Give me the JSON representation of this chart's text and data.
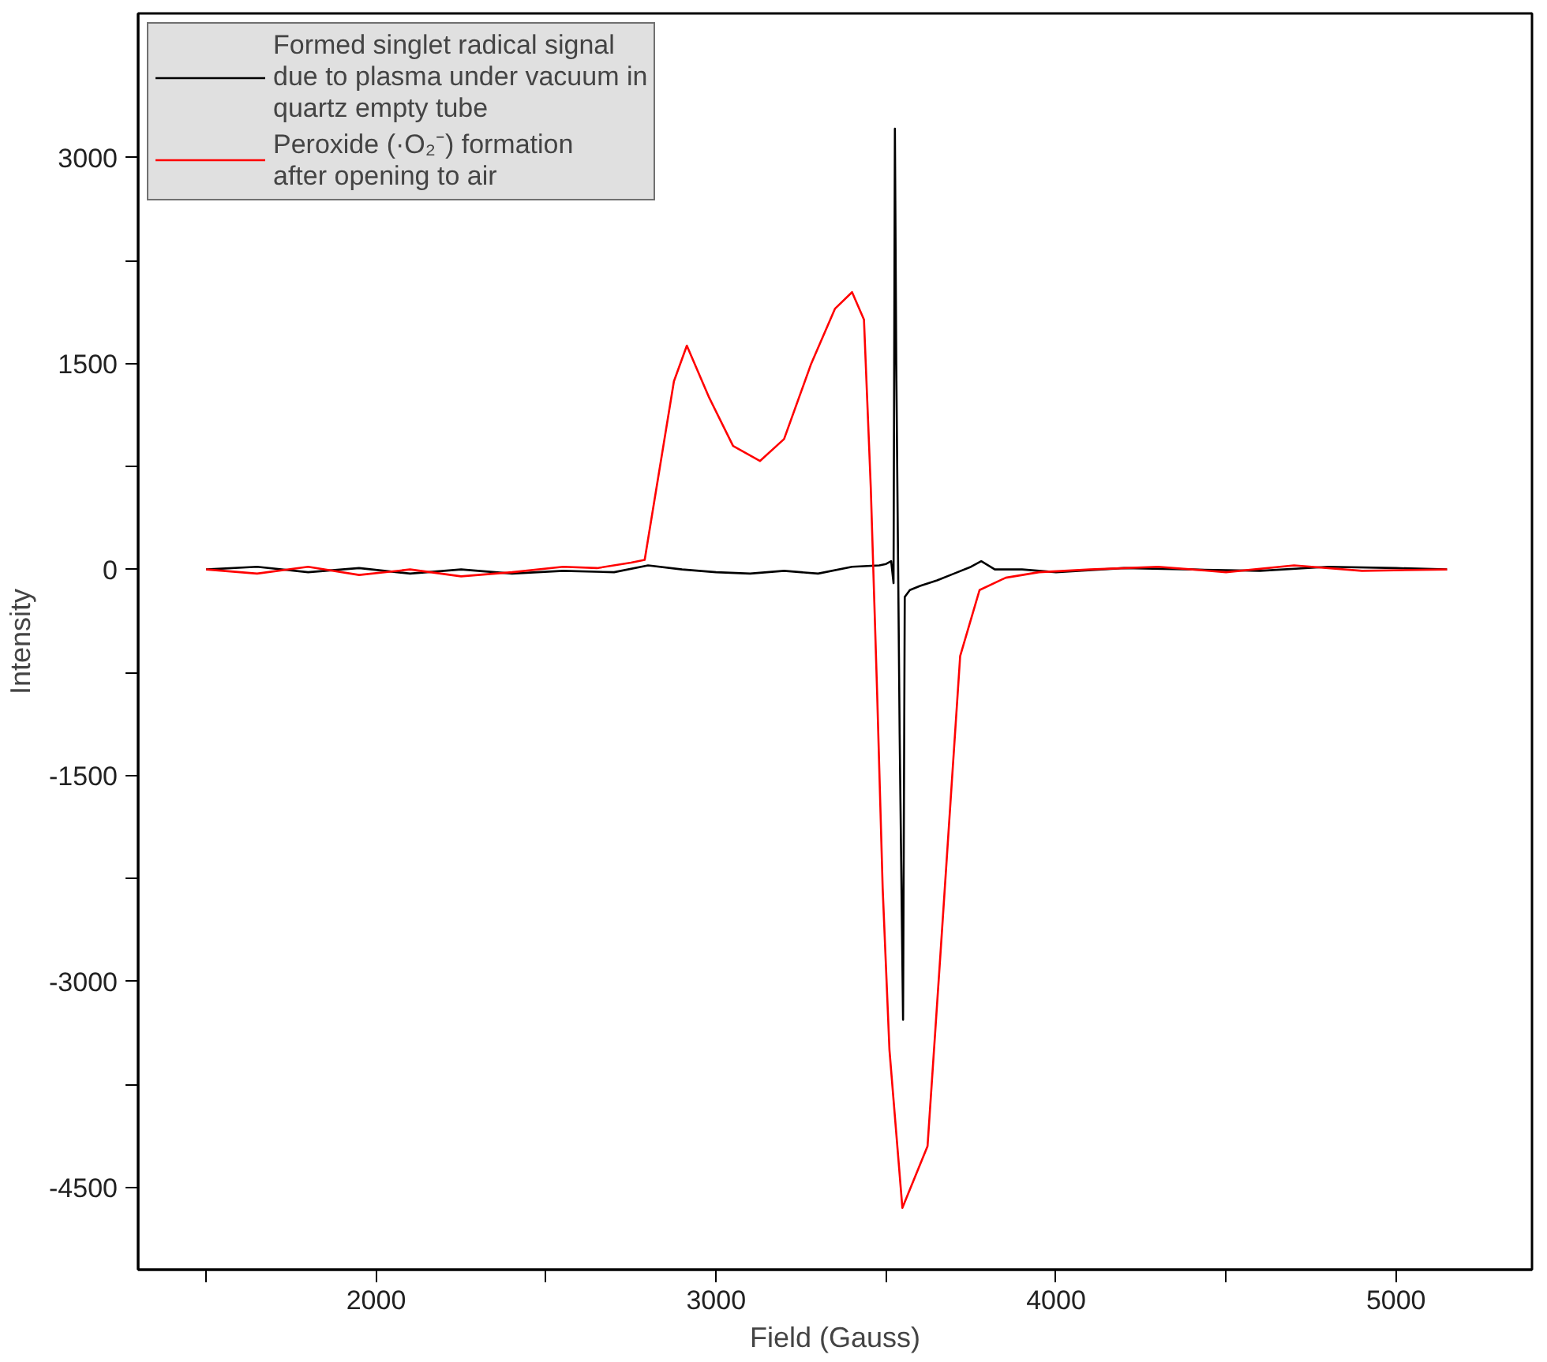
{
  "chart_data": {
    "type": "line",
    "xlabel": "Field (Gauss)",
    "ylabel": "Intensity",
    "xlim": [
      1300,
      5400
    ],
    "ylim": [
      -5100,
      4050
    ],
    "xticks": [
      {
        "value": 1500,
        "label": null
      },
      2000,
      {
        "value": 2500,
        "label": null
      },
      3000,
      {
        "value": 3500,
        "label": null
      },
      4000,
      {
        "value": 4500,
        "label": null
      },
      5000
    ],
    "yticks": [
      -4500,
      {
        "value": -3750,
        "label": null
      },
      -3000,
      {
        "value": -2250,
        "label": null
      },
      -1500,
      {
        "value": -750,
        "label": null
      },
      0,
      {
        "value": 750,
        "label": null
      },
      1500,
      {
        "value": 2250,
        "label": null
      },
      3000
    ],
    "grid": false,
    "legend": "top left",
    "marker": "none",
    "line_style": "solid",
    "series": [
      {
        "name": "Formed singlet radical signal due to plasma under vacuum in quartz empty tube",
        "color": "#000000",
        "x": [
          1500,
          1650,
          1800,
          1950,
          2100,
          2250,
          2400,
          2550,
          2700,
          2800,
          2900,
          3000,
          3100,
          3200,
          3300,
          3400,
          3480,
          3500,
          3515,
          3522,
          3526,
          3530,
          3540,
          3550,
          3555,
          3570,
          3600,
          3650,
          3700,
          3750,
          3780,
          3820,
          3900,
          4000,
          4200,
          4400,
          4600,
          4800,
          5000,
          5150
        ],
        "values": [
          0,
          20,
          -20,
          10,
          -30,
          0,
          -30,
          -10,
          -20,
          30,
          0,
          -20,
          -30,
          -10,
          -30,
          20,
          30,
          40,
          60,
          -100,
          3210,
          1500,
          -1200,
          -3280,
          -200,
          -150,
          -120,
          -80,
          -30,
          20,
          60,
          0,
          0,
          -20,
          10,
          0,
          -10,
          20,
          10,
          0
        ]
      },
      {
        "name": "Peroxide (·O₂⁻) formation after opening to air",
        "color": "#ff0000",
        "x": [
          1500,
          1650,
          1800,
          1950,
          2100,
          2250,
          2400,
          2550,
          2650,
          2750,
          2790,
          2876,
          2914,
          2980,
          3050,
          3129,
          3200,
          3280,
          3350,
          3400,
          3435,
          3455,
          3474,
          3490,
          3510,
          3548,
          3622,
          3660,
          3718,
          3775,
          3852,
          3950,
          4100,
          4300,
          4500,
          4700,
          4900,
          5150
        ],
        "values": [
          0,
          -30,
          20,
          -40,
          0,
          -50,
          -20,
          20,
          10,
          50,
          70,
          1370,
          1630,
          1250,
          900,
          790,
          950,
          1500,
          1900,
          2020,
          1820,
          600,
          -920,
          -2320,
          -3500,
          -4650,
          -4200,
          -2800,
          -630,
          -150,
          -60,
          -20,
          0,
          20,
          -20,
          30,
          -10,
          0
        ]
      }
    ]
  }
}
